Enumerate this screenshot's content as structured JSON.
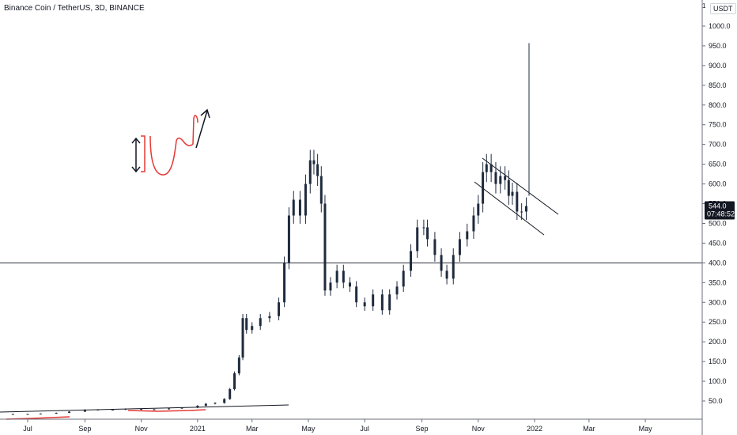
{
  "header": {
    "title": "Binance Coin / TetherUS, 3D, BINANCE",
    "currency": "USDT",
    "top_value": "1"
  },
  "price_badge": {
    "price": "544.0",
    "countdown": "07:48:52"
  },
  "colors": {
    "candle": "#1f2b3d",
    "axis_border": "#6b6f7a",
    "horizontal_line": "#2a2e39",
    "drawing_red": "#e53935",
    "drawing_black": "#131722",
    "badge_bg": "#131722"
  },
  "chart_data": {
    "type": "candlestick",
    "title": "Binance Coin / TetherUS, 3D, BINANCE",
    "x_ticks": [
      "Jul",
      "Sep",
      "Nov",
      "2021",
      "Mar",
      "May",
      "Jul",
      "Sep",
      "Nov",
      "2022",
      "Mar",
      "May"
    ],
    "y_ticks": [
      50,
      100,
      150,
      200,
      250,
      300,
      350,
      400,
      450,
      500,
      550,
      600,
      650,
      700,
      750,
      800,
      850,
      900,
      950,
      1000
    ],
    "ylim": [
      0,
      1050
    ],
    "grid": false,
    "horizontal_line": 400,
    "last_price": 544.0,
    "series": [
      {
        "points": [
          {
            "date": "2020-06-15",
            "close": 17
          },
          {
            "date": "2020-07-01",
            "close": 17
          },
          {
            "date": "2020-07-15",
            "close": 18
          },
          {
            "date": "2020-08-01",
            "close": 20
          },
          {
            "date": "2020-08-15",
            "close": 23
          },
          {
            "date": "2020-09-01",
            "close": 28
          },
          {
            "date": "2020-09-15",
            "close": 27
          },
          {
            "date": "2020-10-01",
            "close": 28
          },
          {
            "date": "2020-10-15",
            "close": 30
          },
          {
            "date": "2020-11-01",
            "close": 28
          },
          {
            "date": "2020-11-15",
            "close": 29
          },
          {
            "date": "2020-12-01",
            "close": 31
          },
          {
            "date": "2020-12-15",
            "close": 33
          },
          {
            "date": "2021-01-01",
            "close": 38
          },
          {
            "date": "2021-01-10",
            "close": 43
          },
          {
            "date": "2021-01-20",
            "close": 45
          },
          {
            "date": "2021-01-30",
            "close": 55
          },
          {
            "date": "2021-02-05",
            "close": 80
          },
          {
            "date": "2021-02-10",
            "close": 120
          },
          {
            "date": "2021-02-15",
            "close": 160
          },
          {
            "date": "2021-02-19",
            "close": 260
          },
          {
            "date": "2021-02-23",
            "close": 230
          },
          {
            "date": "2021-03-01",
            "close": 240
          },
          {
            "date": "2021-03-10",
            "close": 260
          },
          {
            "date": "2021-03-20",
            "close": 265
          },
          {
            "date": "2021-03-30",
            "close": 300
          },
          {
            "date": "2021-04-05",
            "close": 400
          },
          {
            "date": "2021-04-10",
            "close": 520
          },
          {
            "date": "2021-04-15",
            "close": 560
          },
          {
            "date": "2021-04-22",
            "close": 520
          },
          {
            "date": "2021-04-28",
            "close": 600
          },
          {
            "date": "2021-05-03",
            "close": 660
          },
          {
            "date": "2021-05-07",
            "close": 650
          },
          {
            "date": "2021-05-11",
            "close": 620
          },
          {
            "date": "2021-05-15",
            "close": 550
          },
          {
            "date": "2021-05-19",
            "close": 330
          },
          {
            "date": "2021-05-25",
            "close": 350
          },
          {
            "date": "2021-06-01",
            "close": 380
          },
          {
            "date": "2021-06-08",
            "close": 350
          },
          {
            "date": "2021-06-15",
            "close": 340
          },
          {
            "date": "2021-06-22",
            "close": 300
          },
          {
            "date": "2021-07-01",
            "close": 290
          },
          {
            "date": "2021-07-10",
            "close": 320
          },
          {
            "date": "2021-07-20",
            "close": 280
          },
          {
            "date": "2021-07-28",
            "close": 320
          },
          {
            "date": "2021-08-05",
            "close": 340
          },
          {
            "date": "2021-08-12",
            "close": 380
          },
          {
            "date": "2021-08-20",
            "close": 430
          },
          {
            "date": "2021-08-27",
            "close": 490
          },
          {
            "date": "2021-09-03",
            "close": 490
          },
          {
            "date": "2021-09-07",
            "close": 460
          },
          {
            "date": "2021-09-15",
            "close": 420
          },
          {
            "date": "2021-09-22",
            "close": 380
          },
          {
            "date": "2021-09-28",
            "close": 360
          },
          {
            "date": "2021-10-05",
            "close": 420
          },
          {
            "date": "2021-10-12",
            "close": 460
          },
          {
            "date": "2021-10-20",
            "close": 480
          },
          {
            "date": "2021-10-27",
            "close": 520
          },
          {
            "date": "2021-11-01",
            "close": 550
          },
          {
            "date": "2021-11-06",
            "close": 630
          },
          {
            "date": "2021-11-10",
            "close": 650
          },
          {
            "date": "2021-11-15",
            "close": 630
          },
          {
            "date": "2021-11-20",
            "close": 600
          },
          {
            "date": "2021-11-25",
            "close": 620
          },
          {
            "date": "2021-11-30",
            "close": 610
          },
          {
            "date": "2021-12-04",
            "close": 570
          },
          {
            "date": "2021-12-08",
            "close": 580
          },
          {
            "date": "2021-12-13",
            "close": 530
          },
          {
            "date": "2021-12-18",
            "close": 530
          },
          {
            "date": "2021-12-23",
            "close": 544
          }
        ]
      }
    ]
  }
}
